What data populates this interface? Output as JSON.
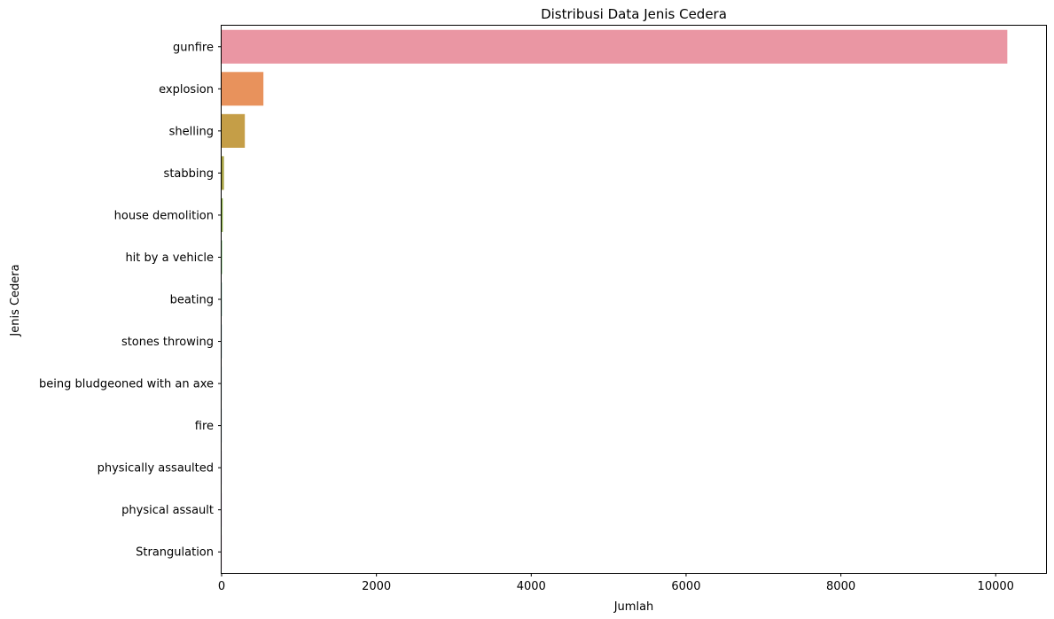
{
  "chart_data": {
    "type": "bar",
    "orientation": "horizontal",
    "title": "Distribusi Data Jenis Cedera",
    "xlabel": "Jumlah",
    "ylabel": "Jenis Cedera",
    "xlim": [
      0,
      10650
    ],
    "xticks": [
      0,
      2000,
      4000,
      6000,
      8000,
      10000
    ],
    "grid": false,
    "legend": "none",
    "categories": [
      "gunfire",
      "explosion",
      "shelling",
      "stabbing",
      "house demolition",
      "hit by a vehicle",
      "beating",
      "stones throwing",
      "being bludgeoned with an axe",
      "fire",
      "physically assaulted",
      "physical assault",
      "Strangulation"
    ],
    "values": [
      10150,
      540,
      300,
      30,
      15,
      5,
      3,
      2,
      1,
      1,
      1,
      1,
      1
    ],
    "colors": [
      "#ea96a3",
      "#e8925c",
      "#c59e47",
      "#a8a344",
      "#86a941",
      "#4fb147",
      "#52ad8e",
      "#55aab0",
      "#58a7c5",
      "#5ba2e0",
      "#a48cf2",
      "#d683f0",
      "#eb87c7"
    ]
  }
}
